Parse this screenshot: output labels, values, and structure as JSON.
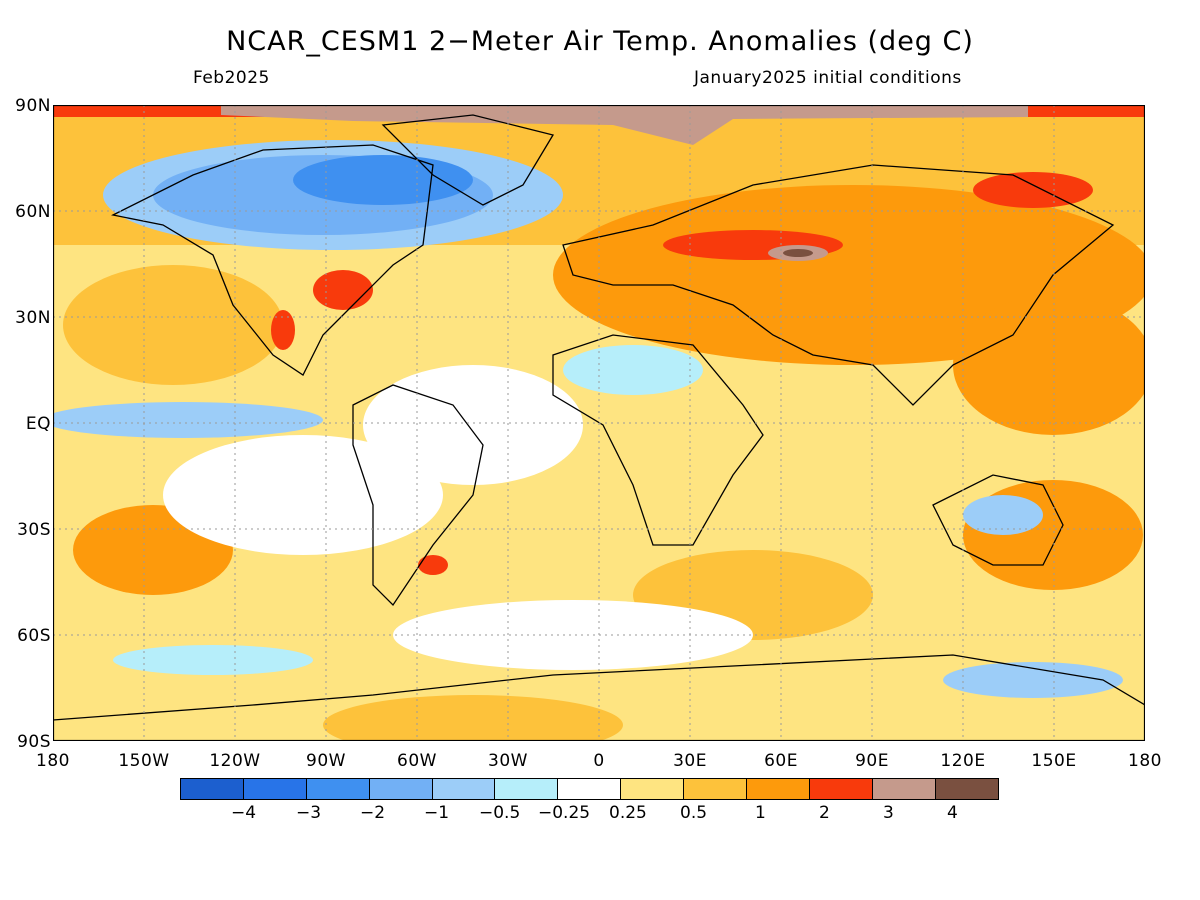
{
  "title": "NCAR_CESM1 2−Meter Air Temp. Anomalies (deg C)",
  "subtitle_left": "Feb2025",
  "subtitle_right": "January2025 initial conditions",
  "lat_labels": [
    "90N",
    "60N",
    "30N",
    "EQ",
    "30S",
    "60S",
    "90S"
  ],
  "lon_labels": [
    "180",
    "150W",
    "120W",
    "90W",
    "60W",
    "30W",
    "0",
    "30E",
    "60E",
    "90E",
    "120E",
    "150E",
    "180"
  ],
  "colorbar": {
    "colors": [
      "#1c5fcf",
      "#2874e8",
      "#3f90f0",
      "#72b0f5",
      "#9ccdf8",
      "#b6eefa",
      "#ffffff",
      "#fee481",
      "#fdc23b",
      "#fd9a0c",
      "#f83a0c",
      "#c59a8c",
      "#7a5040"
    ],
    "labels": [
      "−4",
      "−3",
      "−2",
      "−1",
      "−0.5",
      "−0.25",
      "0.25",
      "0.5",
      "1",
      "2",
      "3",
      "4"
    ]
  }
}
